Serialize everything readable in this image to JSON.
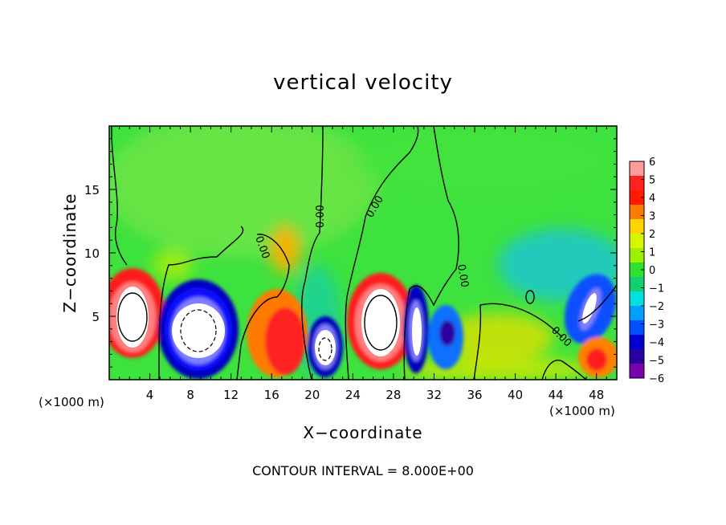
{
  "chart_data": {
    "type": "heatmap",
    "title": "vertical velocity",
    "xlabel": "X−coordinate",
    "ylabel": "Z−coordinate",
    "x_unit": "(×1000 m)",
    "footer": "CONTOUR INTERVAL = 8.000E+00",
    "xlim": [
      0,
      50
    ],
    "ylim": [
      0,
      20
    ],
    "x_ticks": [
      4,
      8,
      12,
      16,
      20,
      24,
      28,
      32,
      36,
      40,
      44,
      48
    ],
    "y_ticks": [
      5,
      10,
      15
    ],
    "colorbar": {
      "levels": [
        6,
        5,
        4,
        3,
        2,
        1,
        0,
        -1,
        -2,
        -3,
        -4,
        -5,
        -6
      ],
      "label_texts": [
        "6",
        "5",
        "4",
        "3",
        "2",
        "1",
        "0",
        "−1",
        "−2",
        "−3",
        "−4",
        "−5",
        "−6"
      ],
      "colors": [
        "#ff9a9a",
        "#ff2020",
        "#ff1a00",
        "#ff7a00",
        "#ffd400",
        "#d8f500",
        "#9cf000",
        "#2fe02f",
        "#10d070",
        "#00e0e0",
        "#00a0ff",
        "#0050ff",
        "#0000d0",
        "#2a00a0",
        "#7a00b0"
      ]
    },
    "contour_labels": [
      "0.00",
      "0.00",
      "0.00",
      "0.00",
      "0.00"
    ],
    "features": [
      {
        "x": 2.2,
        "z": 4.8,
        "w": 6.5
      },
      {
        "x": 8.8,
        "z": 3.6,
        "w": -6.5
      },
      {
        "x": 17.5,
        "z": 3.0,
        "w": 4.5
      },
      {
        "x": 21.0,
        "z": 2.5,
        "w": -6
      },
      {
        "x": 27.3,
        "z": 4.5,
        "w": 6.5
      },
      {
        "x": 30.7,
        "z": 4.0,
        "w": -6
      },
      {
        "x": 33.2,
        "z": 3.5,
        "w": -4
      },
      {
        "x": 47.0,
        "z": 5.5,
        "w": -5
      },
      {
        "x": 48.0,
        "z": 1.8,
        "w": 4
      },
      {
        "x": 44.0,
        "z": 11.0,
        "w": -1.8
      },
      {
        "x": 17.0,
        "z": 10.5,
        "w": 2
      }
    ]
  }
}
